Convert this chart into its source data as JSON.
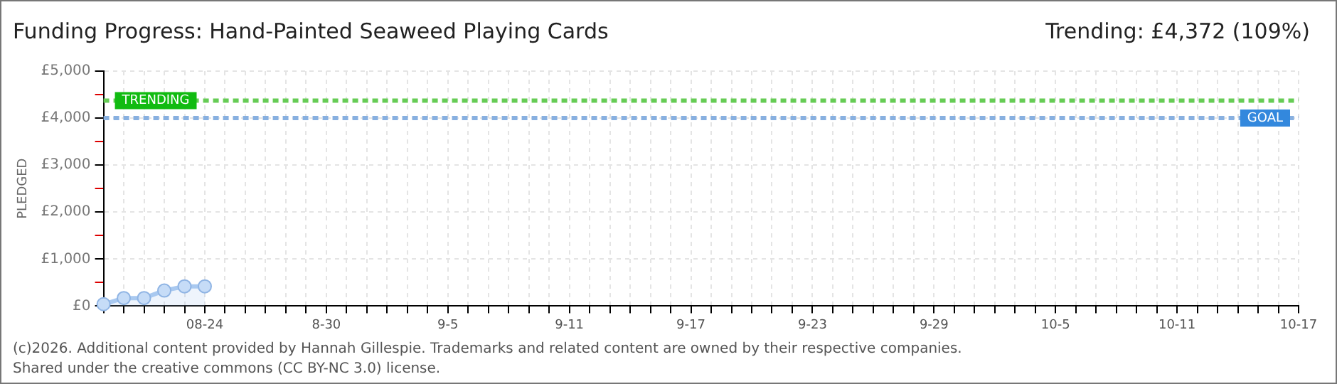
{
  "chart_data": {
    "type": "area",
    "title": "Funding Progress: Hand-Painted Seaweed Playing Cards",
    "subtitle": "Trending: £4,372 (109%)",
    "ylabel": "PLEDGED",
    "categories": [
      null,
      null,
      null,
      null,
      null,
      "08-24",
      null,
      null,
      null,
      null,
      null,
      "8-30",
      null,
      null,
      null,
      null,
      null,
      "9-5",
      null,
      null,
      null,
      null,
      null,
      "9-11",
      null,
      null,
      null,
      null,
      null,
      "9-17",
      null,
      null,
      null,
      null,
      null,
      "9-23",
      null,
      null,
      null,
      null,
      null,
      "9-29",
      null,
      null,
      null,
      null,
      null,
      "10-5",
      null,
      null,
      null,
      null,
      null,
      "10-11",
      null,
      null,
      null,
      null,
      null,
      "10-17"
    ],
    "series": [
      {
        "color": "#a9c9f0",
        "values": [
          40,
          170,
          170,
          330,
          420,
          420,
          null,
          null,
          null,
          null,
          null,
          null,
          null,
          null,
          null,
          null,
          null,
          null,
          null,
          null,
          null,
          null,
          null,
          null,
          null,
          null,
          null,
          null,
          null,
          null,
          null,
          null,
          null,
          null,
          null,
          null,
          null,
          null,
          null,
          null,
          null,
          null,
          null,
          null,
          null,
          null,
          null,
          null,
          null,
          null,
          null,
          null,
          null,
          null,
          null,
          null,
          null,
          null,
          null,
          null
        ]
      }
    ],
    "ylim": [
      0,
      5000
    ],
    "yticks": [
      {
        "value": 0,
        "label": "£0"
      },
      {
        "value": 500,
        "label": null
      },
      {
        "value": 1000,
        "label": "£1,000"
      },
      {
        "value": 1500,
        "label": null
      },
      {
        "value": 2000,
        "label": "£2,000"
      },
      {
        "value": 2500,
        "label": null
      },
      {
        "value": 3000,
        "label": "£3,000"
      },
      {
        "value": 3500,
        "label": null
      },
      {
        "value": 4000,
        "label": "£4,000"
      },
      {
        "value": 4500,
        "label": null
      },
      {
        "value": 5000,
        "label": "£5,000"
      }
    ],
    "ref_lines": [
      {
        "axis": "y",
        "value": 4372,
        "label": "TRENDING",
        "color": "#66cc55",
        "line_style": "dashed"
      },
      {
        "axis": "y",
        "value": 4000,
        "label": "GOAL",
        "color": "#88b0e0",
        "line_style": "dashed"
      }
    ],
    "annotations": [
      "(c)2026. Additional content provided by Hannah Gillespie. Trademarks and related content are owned by their respective companies.",
      "Shared under the creative commons (CC BY-NC 3.0) license."
    ],
    "grid": true,
    "legend": false,
    "marker": "circle",
    "line_style": "solid"
  }
}
